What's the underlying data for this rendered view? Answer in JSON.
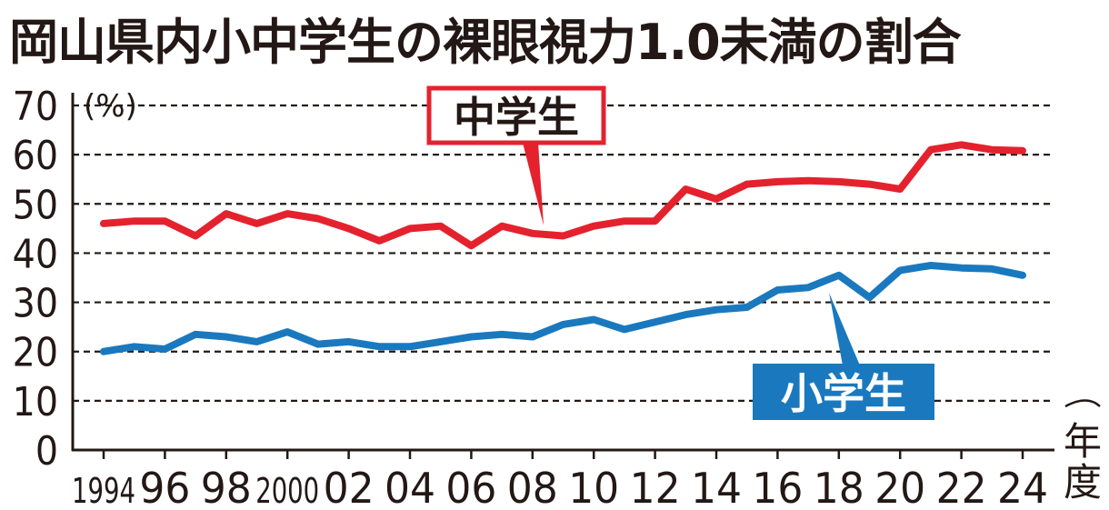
{
  "chart_data": {
    "type": "line",
    "title": "岡山県内小中学生の裸眼視力1.0未満の割合",
    "ylabel": "(%)",
    "xlabel": "年度",
    "ylim": [
      0,
      70
    ],
    "yticks": [
      0,
      10,
      20,
      30,
      40,
      50,
      60,
      70
    ],
    "grid": true,
    "xlim": [
      1994,
      2024
    ],
    "x_tick_labels": [
      "1994",
      "96",
      "98",
      "2000",
      "02",
      "04",
      "06",
      "08",
      "10",
      "12",
      "14",
      "16",
      "18",
      "20",
      "22",
      "24"
    ],
    "x": [
      1994,
      1995,
      1996,
      1997,
      1998,
      1999,
      2000,
      2001,
      2002,
      2003,
      2004,
      2005,
      2006,
      2007,
      2008,
      2009,
      2010,
      2011,
      2012,
      2013,
      2014,
      2015,
      2016,
      2017,
      2018,
      2019,
      2020,
      2021,
      2022,
      2023,
      2024
    ],
    "series": [
      {
        "name": "中学生",
        "color": "#e4222e",
        "values": [
          46.0,
          46.5,
          46.5,
          43.5,
          48.0,
          46.0,
          48.0,
          47.0,
          45.0,
          42.5,
          45.0,
          45.5,
          41.5,
          45.5,
          44.0,
          43.5,
          45.5,
          46.5,
          46.5,
          53.0,
          51.0,
          54.0,
          54.5,
          54.7,
          54.5,
          54.0,
          53.0,
          61.0,
          62.0,
          61.0,
          60.8
        ]
      },
      {
        "name": "小学生",
        "color": "#1a79be",
        "values": [
          20.0,
          21.0,
          20.5,
          23.5,
          23.0,
          22.0,
          24.0,
          21.5,
          22.0,
          21.0,
          21.0,
          22.0,
          23.0,
          23.5,
          23.0,
          25.5,
          26.5,
          24.5,
          26.0,
          27.5,
          28.5,
          29.0,
          32.5,
          33.0,
          35.5,
          31.0,
          36.5,
          37.5,
          37.0,
          36.8,
          35.5
        ]
      }
    ]
  }
}
